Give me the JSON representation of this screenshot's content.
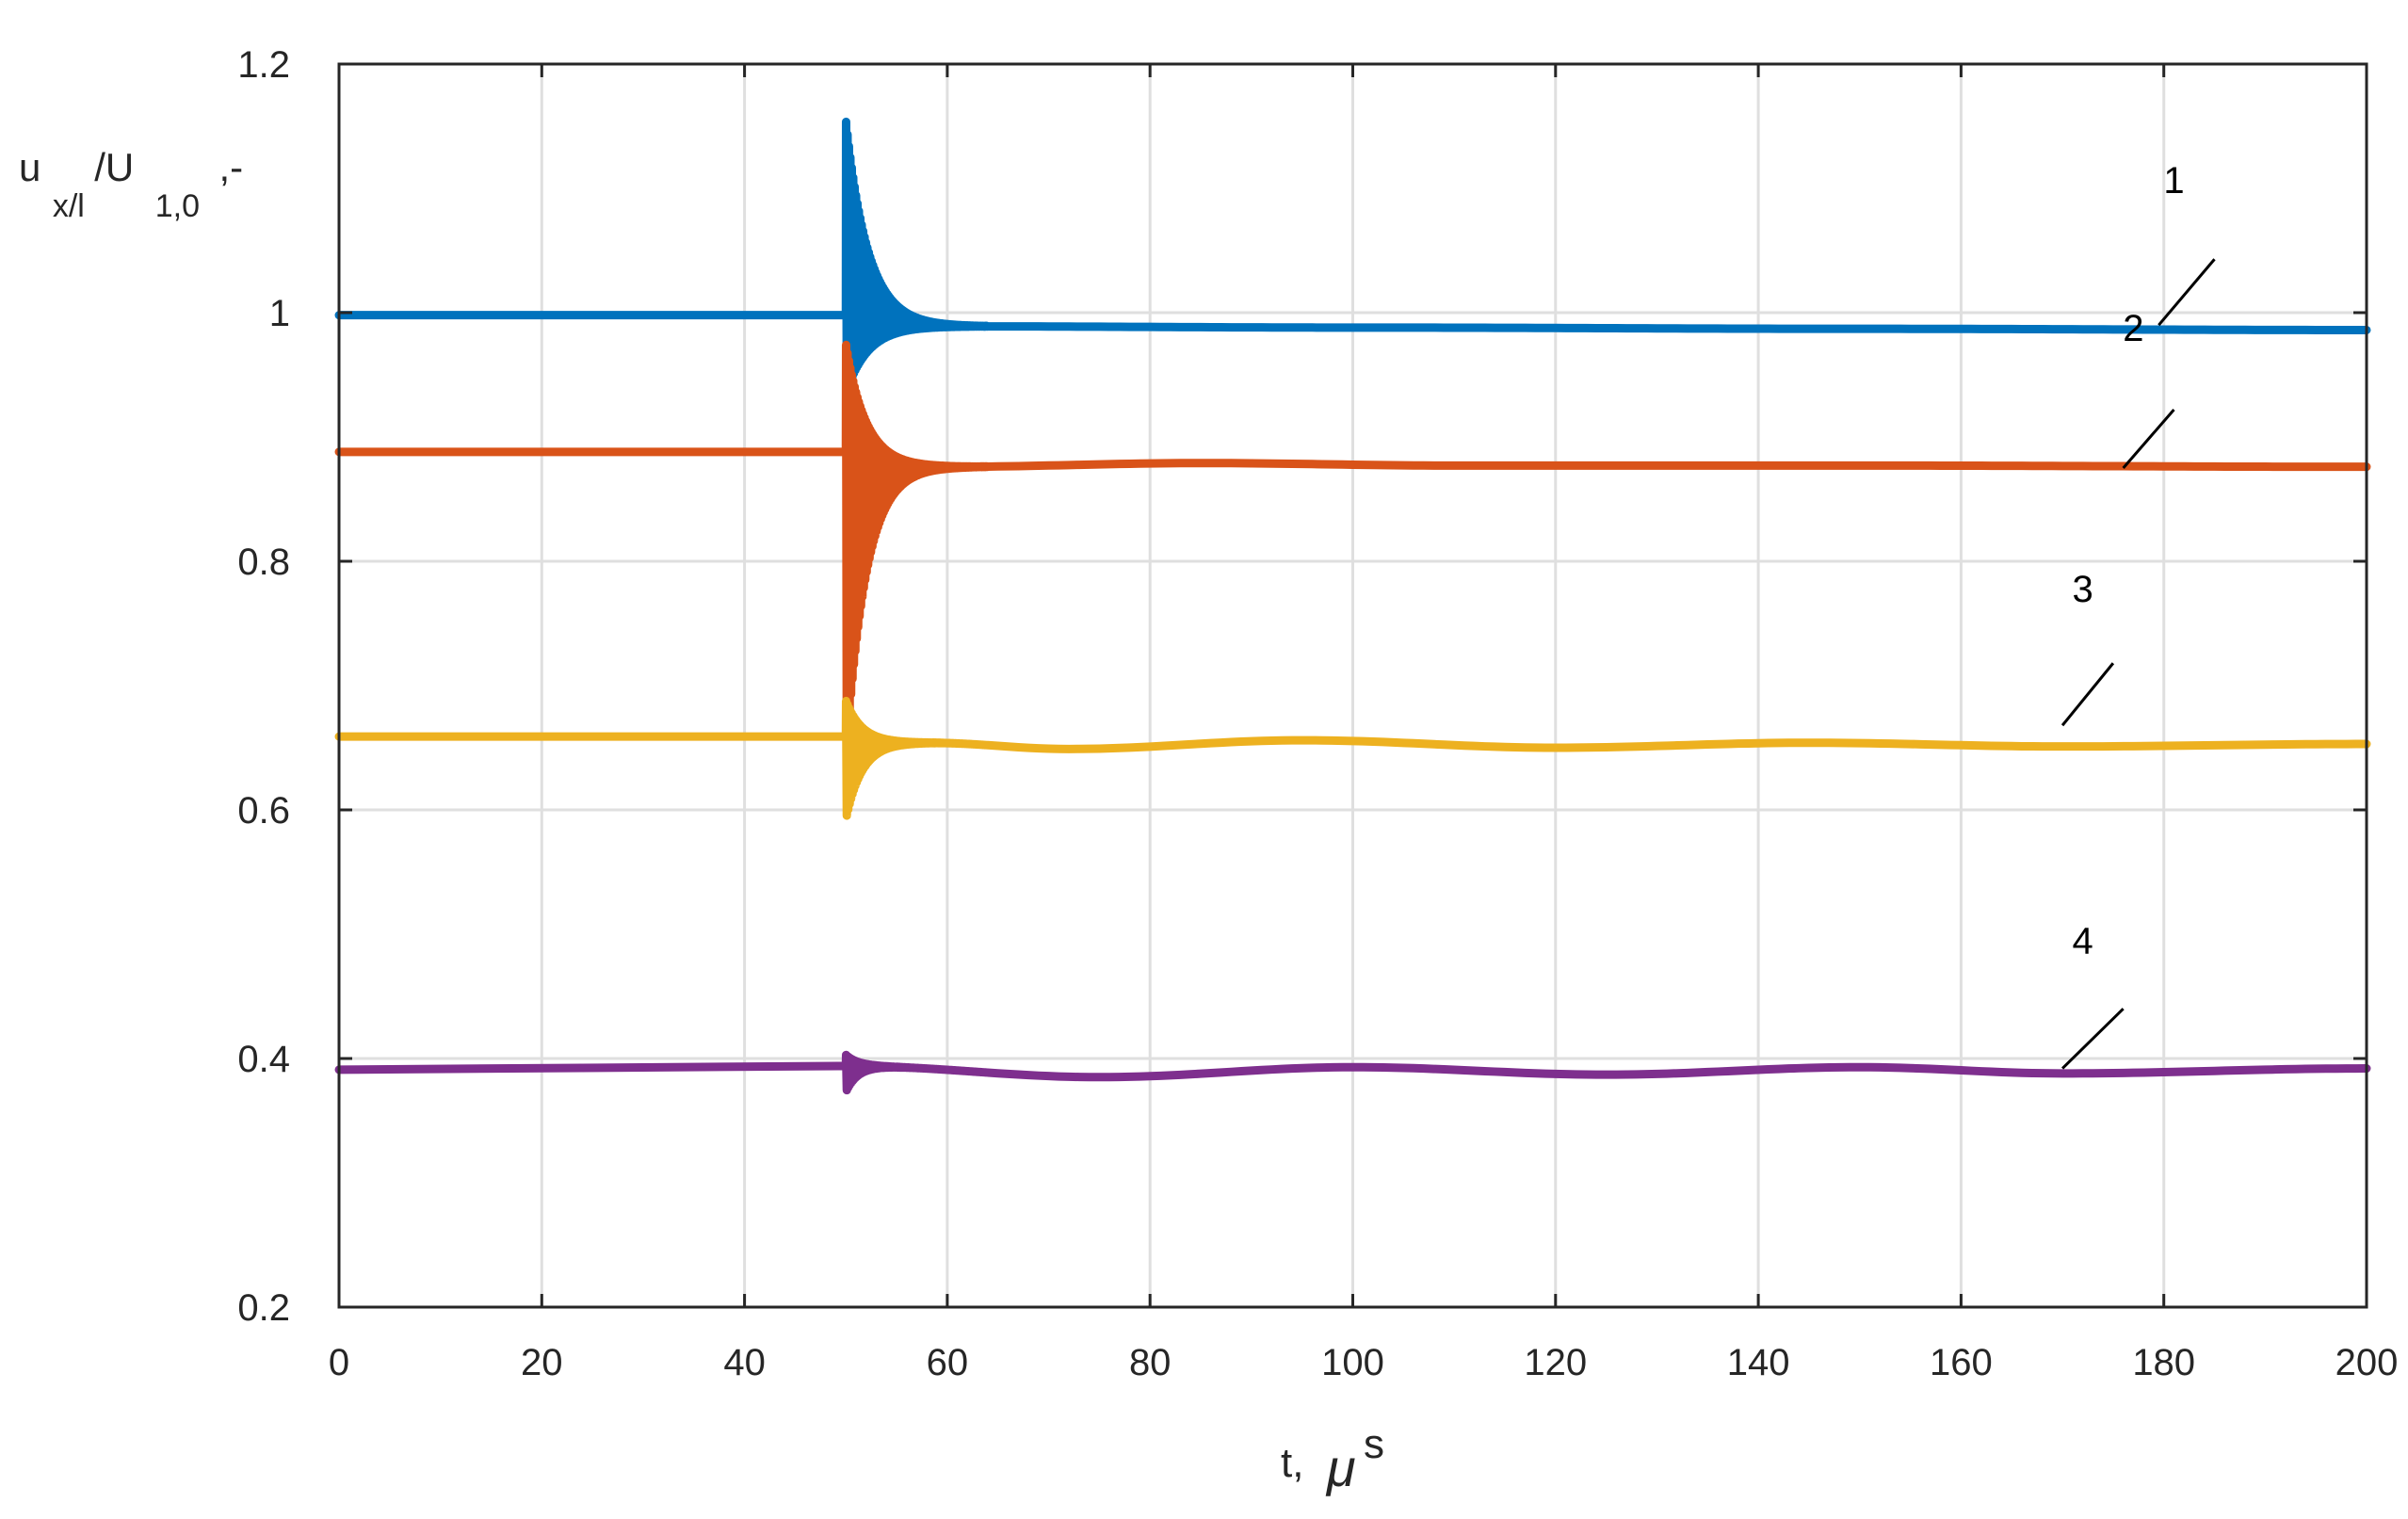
{
  "chart_data": {
    "type": "line",
    "title": "",
    "xlabel": {
      "main": "t,",
      "mu": "μ",
      "sup": "s"
    },
    "ylabel": {
      "u": "u",
      "sub1": "x/l",
      "mid": "/U",
      "sub2": "1,0",
      "tail": ",-"
    },
    "xlim": [
      0,
      200
    ],
    "ylim": [
      0.2,
      1.2
    ],
    "x_ticks": [
      0,
      20,
      40,
      60,
      80,
      100,
      120,
      140,
      160,
      180,
      200
    ],
    "x_tick_labels": [
      "0",
      "20",
      "40",
      "60",
      "80",
      "100",
      "120",
      "140",
      "160",
      "180",
      "200"
    ],
    "y_ticks": [
      0.2,
      0.4,
      0.6,
      0.8,
      1.0,
      1.2
    ],
    "y_tick_labels": [
      "0.2",
      "0.4",
      "0.6",
      "0.8",
      "1",
      "1.2"
    ],
    "grid": true,
    "disturbance_time": 50,
    "series": [
      {
        "label": "1",
        "color": "#0072bd",
        "pre": 0.998,
        "steady": 0.988,
        "peak": 1.155,
        "trough": 0.935,
        "tau": 2.2,
        "slow": [
          [
            60,
            0.989
          ],
          [
            100,
            0.988
          ],
          [
            150,
            0.987
          ],
          [
            200,
            0.986
          ]
        ],
        "label_x": 181,
        "label_y": 1.107,
        "leader": [
          [
            179.5,
            0.99
          ],
          [
            185,
            1.043
          ]
        ]
      },
      {
        "label": "2",
        "color": "#d95319",
        "pre": 0.888,
        "steady": 0.876,
        "peak": 0.975,
        "trough": 0.64,
        "tau": 2.0,
        "slow": [
          [
            60,
            0.876
          ],
          [
            85,
            0.879
          ],
          [
            110,
            0.877
          ],
          [
            150,
            0.877
          ],
          [
            200,
            0.876
          ]
        ],
        "label_x": 177,
        "label_y": 0.988,
        "leader": [
          [
            176,
            0.875
          ],
          [
            181,
            0.922
          ]
        ]
      },
      {
        "label": "3",
        "color": "#edb120",
        "pre": 0.659,
        "steady": 0.652,
        "peak": 0.688,
        "trough": 0.592,
        "tau": 1.6,
        "slow": [
          [
            58,
            0.654
          ],
          [
            72,
            0.649
          ],
          [
            95,
            0.656
          ],
          [
            120,
            0.65
          ],
          [
            145,
            0.654
          ],
          [
            170,
            0.651
          ],
          [
            200,
            0.653
          ]
        ],
        "label_x": 172,
        "label_y": 0.778,
        "leader": [
          [
            170,
            0.668
          ],
          [
            175,
            0.718
          ]
        ]
      },
      {
        "label": "4",
        "color": "#7e2f8e",
        "pre": 0.392,
        "steady": 0.39,
        "peak": 0.403,
        "trough": 0.373,
        "tau": 1.2,
        "slow": [
          [
            0,
            0.391
          ],
          [
            50,
            0.394
          ],
          [
            75,
            0.385
          ],
          [
            100,
            0.393
          ],
          [
            125,
            0.387
          ],
          [
            150,
            0.393
          ],
          [
            170,
            0.388
          ],
          [
            200,
            0.392
          ]
        ],
        "label_x": 172,
        "label_y": 0.495,
        "leader": [
          [
            170,
            0.392
          ],
          [
            176,
            0.44
          ]
        ]
      }
    ]
  }
}
